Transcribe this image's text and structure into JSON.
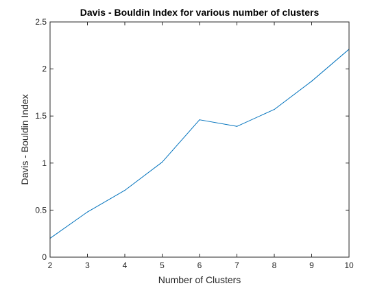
{
  "chart_data": {
    "type": "line",
    "title": "Davis - Bouldin Index for various number of clusters",
    "xlabel": "Number of Clusters",
    "ylabel": "Davis - Bouldin Index",
    "xlim": [
      2,
      10
    ],
    "ylim": [
      0,
      2.5
    ],
    "xticks": [
      "2",
      "3",
      "4",
      "5",
      "6",
      "7",
      "8",
      "9",
      "10"
    ],
    "yticks": [
      "0",
      "0.5",
      "1",
      "1.5",
      "2",
      "2.5"
    ],
    "grid": false,
    "series": [
      {
        "x": [
          2,
          3,
          4,
          5,
          6,
          7,
          8,
          9,
          10
        ],
        "values": [
          0.2,
          0.48,
          0.71,
          1.01,
          1.46,
          1.39,
          1.57,
          1.87,
          2.21
        ],
        "color": "#0072bd"
      }
    ]
  }
}
